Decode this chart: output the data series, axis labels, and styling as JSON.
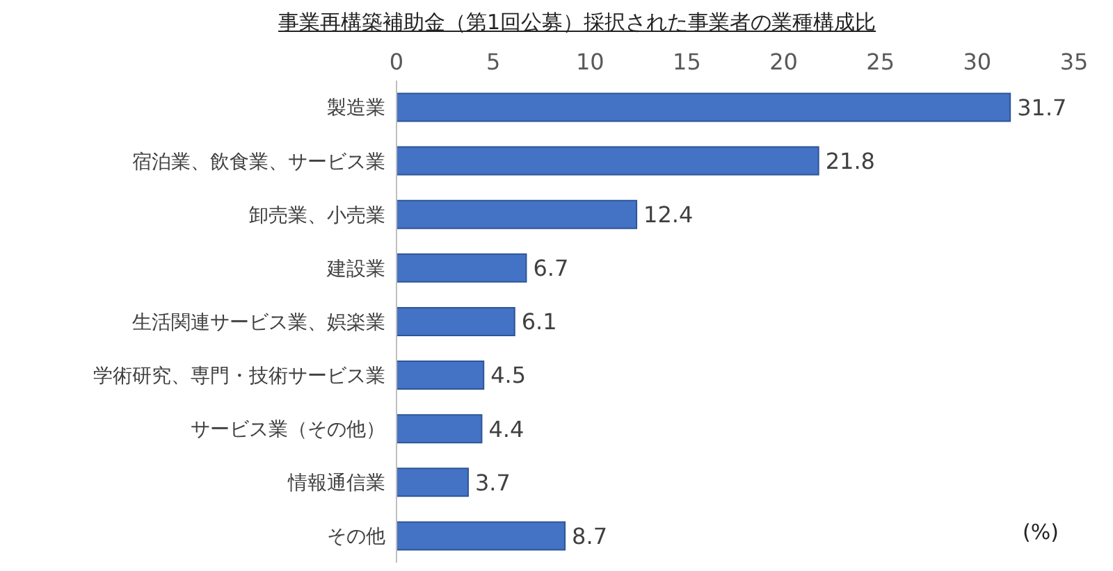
{
  "chart_data": {
    "type": "bar",
    "orientation": "horizontal",
    "title": "事業再構築補助金（第1回公募）採択された事業者の業種構成比",
    "xlabel": "(%)",
    "categories": [
      "製造業",
      "宿泊業、飲食業、サービス業",
      "卸売業、小売業",
      "建設業",
      "生活関連サービス業、娯楽業",
      "学術研究、専門・技術サービス業",
      "サービス業（その他）",
      "情報通信業",
      "その他"
    ],
    "values": [
      31.7,
      21.8,
      12.4,
      6.7,
      6.1,
      4.5,
      4.4,
      3.7,
      8.7
    ],
    "color": "#4472c4",
    "xlim": [
      0,
      35
    ],
    "xticks": [
      0,
      5,
      10,
      15,
      20,
      25,
      30,
      35
    ],
    "data_labels": true,
    "grid": false
  }
}
